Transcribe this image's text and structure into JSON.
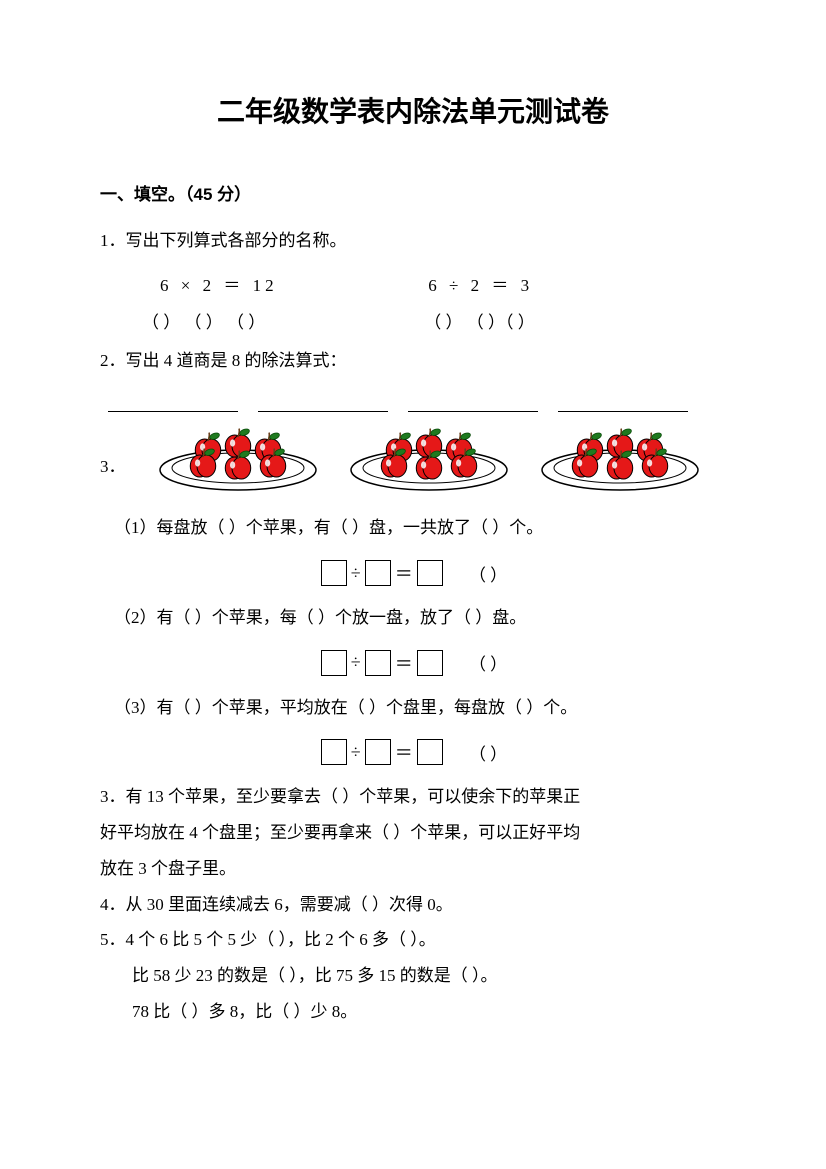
{
  "title": "二年级数学表内除法单元测试卷",
  "section1": {
    "header": "一、填空。（45 分）",
    "q1": {
      "text": "1．写出下列算式各部分的名称。",
      "eq_left": "6  ×  2  ＝  12",
      "eq_right": "6  ÷  2  ＝  3",
      "paren_left": "（    ） （    ） （    ）",
      "paren_right": "（    ） （    ）（    ）"
    },
    "q2": {
      "text": "2．写出 4 道商是 8 的除法算式："
    },
    "q3": {
      "num": "3．",
      "apples": {
        "count_per_plate": 6,
        "plates": 3,
        "apple_color": "#e51818",
        "apple_highlight": "#ffffff",
        "leaf_color": "#1f7a1f",
        "stem_color": "#6b3e1a",
        "plate_fill": "#ffffff",
        "plate_stroke": "#000000"
      },
      "sub1": "（1）每盘放（    ）个苹果，有（    ）盘，一共放了（    ）个。",
      "sub2": "（2）有（    ）个苹果，每（    ）个放一盘，放了（    ）盘。",
      "sub3": "（3）有（    ）个苹果，平均放在（    ）个盘里，每盘放（    ）个。",
      "eq_trailing": "（      ）"
    },
    "q3b": {
      "line1": "3．有 13 个苹果，至少要拿去（      ）个苹果，可以使余下的苹果正",
      "line2": "好平均放在 4 个盘里；至少要再拿来（      ）个苹果，可以正好平均",
      "line3": "放在 3 个盘子里。"
    },
    "q4": {
      "text": "4．从 30 里面连续减去 6，需要减（      ）次得 0。"
    },
    "q5": {
      "line1": "5．4 个 6 比 5 个 5 少（      ），比 2 个 6 多（      ）。",
      "line2": "比 58 少 23 的数是（      ），比 75 多 15 的数是（      ）。",
      "line3": "78 比（      ）多 8，比（      ）少 8。"
    }
  }
}
